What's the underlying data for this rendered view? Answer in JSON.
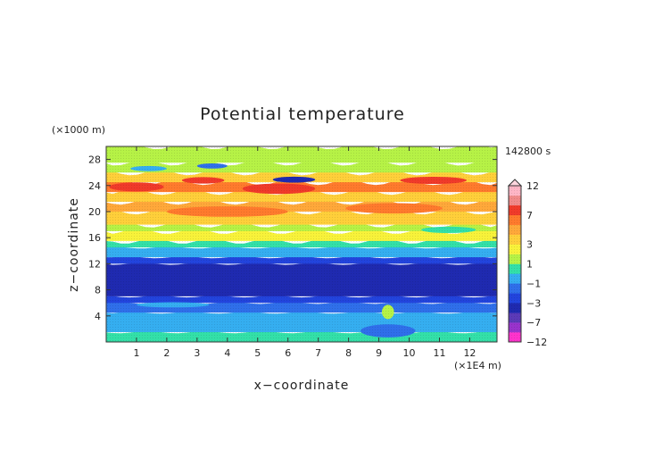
{
  "chart_data": {
    "type": "heatmap",
    "title": "Potential temperature",
    "xlabel": "x−coordinate",
    "ylabel": "z−coordinate",
    "x_unit": "(×1E4 m)",
    "y_unit": "(×1000 m)",
    "time_label": "142800 s",
    "xlim": [
      0,
      12.9
    ],
    "ylim": [
      0,
      30
    ],
    "x_ticks": [
      1,
      2,
      3,
      4,
      5,
      6,
      7,
      8,
      9,
      10,
      11,
      12
    ],
    "y_ticks": [
      4,
      8,
      12,
      16,
      20,
      24,
      28
    ],
    "colorbar": {
      "labels": [
        "12",
        "7",
        "3",
        "1",
        "−1",
        "−3",
        "−7",
        "−12"
      ],
      "levels": [
        -12,
        -9,
        -7,
        -5,
        -3,
        -2,
        -1,
        0,
        1,
        2,
        3,
        4,
        5,
        7,
        9,
        12
      ],
      "colors": [
        "#ff33cc",
        "#9933cc",
        "#5b3ab8",
        "#1f2ab0",
        "#2244dd",
        "#2f6fea",
        "#35aef0",
        "#33e0a8",
        "#b6f246",
        "#f8f23a",
        "#ffcf3a",
        "#ffa83a",
        "#ff7a2d",
        "#f03a2a",
        "#f08a8a",
        "#ffb6c6"
      ]
    },
    "bands": [
      {
        "z_min": 0,
        "z_max": 1.5,
        "value": 0.2
      },
      {
        "z_min": 1.5,
        "z_max": 4.5,
        "value": -0.4
      },
      {
        "z_min": 4.5,
        "z_max": 6.0,
        "value": -1.3
      },
      {
        "z_min": 6.0,
        "z_max": 7.0,
        "value": -2.4
      },
      {
        "z_min": 7.0,
        "z_max": 12.0,
        "value": -3.2
      },
      {
        "z_min": 12.0,
        "z_max": 13.0,
        "value": -2.3
      },
      {
        "z_min": 13.0,
        "z_max": 14.5,
        "value": -0.6
      },
      {
        "z_min": 14.5,
        "z_max": 15.5,
        "value": 0.8
      },
      {
        "z_min": 15.5,
        "z_max": 17.0,
        "value": 2.3
      },
      {
        "z_min": 17.0,
        "z_max": 18.0,
        "value": 1.5
      },
      {
        "z_min": 18.0,
        "z_max": 20.0,
        "value": 3.6
      },
      {
        "z_min": 20.0,
        "z_max": 21.5,
        "value": 4.6
      },
      {
        "z_min": 21.5,
        "z_max": 23.0,
        "value": 3.8
      },
      {
        "z_min": 23.0,
        "z_max": 24.5,
        "value": 5.2
      },
      {
        "z_min": 24.5,
        "z_max": 26.0,
        "value": 3.0
      },
      {
        "z_min": 26.0,
        "z_max": 27.5,
        "value": 1.5
      },
      {
        "z_min": 27.5,
        "z_max": 30.0,
        "value": 1.2
      }
    ],
    "features": [
      {
        "x": 1.0,
        "z": 23.8,
        "rx": 0.9,
        "rz": 0.7,
        "value": 7.5
      },
      {
        "x": 5.7,
        "z": 23.5,
        "rx": 1.2,
        "rz": 0.8,
        "value": 7.5
      },
      {
        "x": 3.2,
        "z": 24.8,
        "rx": 0.7,
        "rz": 0.5,
        "value": 7.2
      },
      {
        "x": 6.2,
        "z": 24.9,
        "rx": 0.7,
        "rz": 0.45,
        "value": -3.1
      },
      {
        "x": 10.8,
        "z": 24.8,
        "rx": 1.1,
        "rz": 0.55,
        "value": 7.2
      },
      {
        "x": 3.5,
        "z": 27.0,
        "rx": 0.5,
        "rz": 0.4,
        "value": -1.5
      },
      {
        "x": 1.4,
        "z": 26.6,
        "rx": 0.6,
        "rz": 0.4,
        "value": -0.8
      },
      {
        "x": 9.3,
        "z": 4.6,
        "rx": 0.2,
        "rz": 1.1,
        "value": 1.6
      },
      {
        "x": 9.3,
        "z": 1.7,
        "rx": 0.9,
        "rz": 1.0,
        "value": -1.4
      },
      {
        "x": 2.2,
        "z": 5.7,
        "rx": 1.2,
        "rz": 0.4,
        "value": -0.6
      },
      {
        "x": 7.6,
        "z": 2.8,
        "rx": 0.9,
        "rz": 0.5,
        "value": -0.5
      },
      {
        "x": 4.0,
        "z": 20.0,
        "rx": 2.0,
        "rz": 0.8,
        "value": 5.3
      },
      {
        "x": 9.5,
        "z": 20.5,
        "rx": 1.6,
        "rz": 0.8,
        "value": 5.2
      },
      {
        "x": 11.3,
        "z": 17.2,
        "rx": 0.9,
        "rz": 0.5,
        "value": 0.7
      }
    ]
  }
}
